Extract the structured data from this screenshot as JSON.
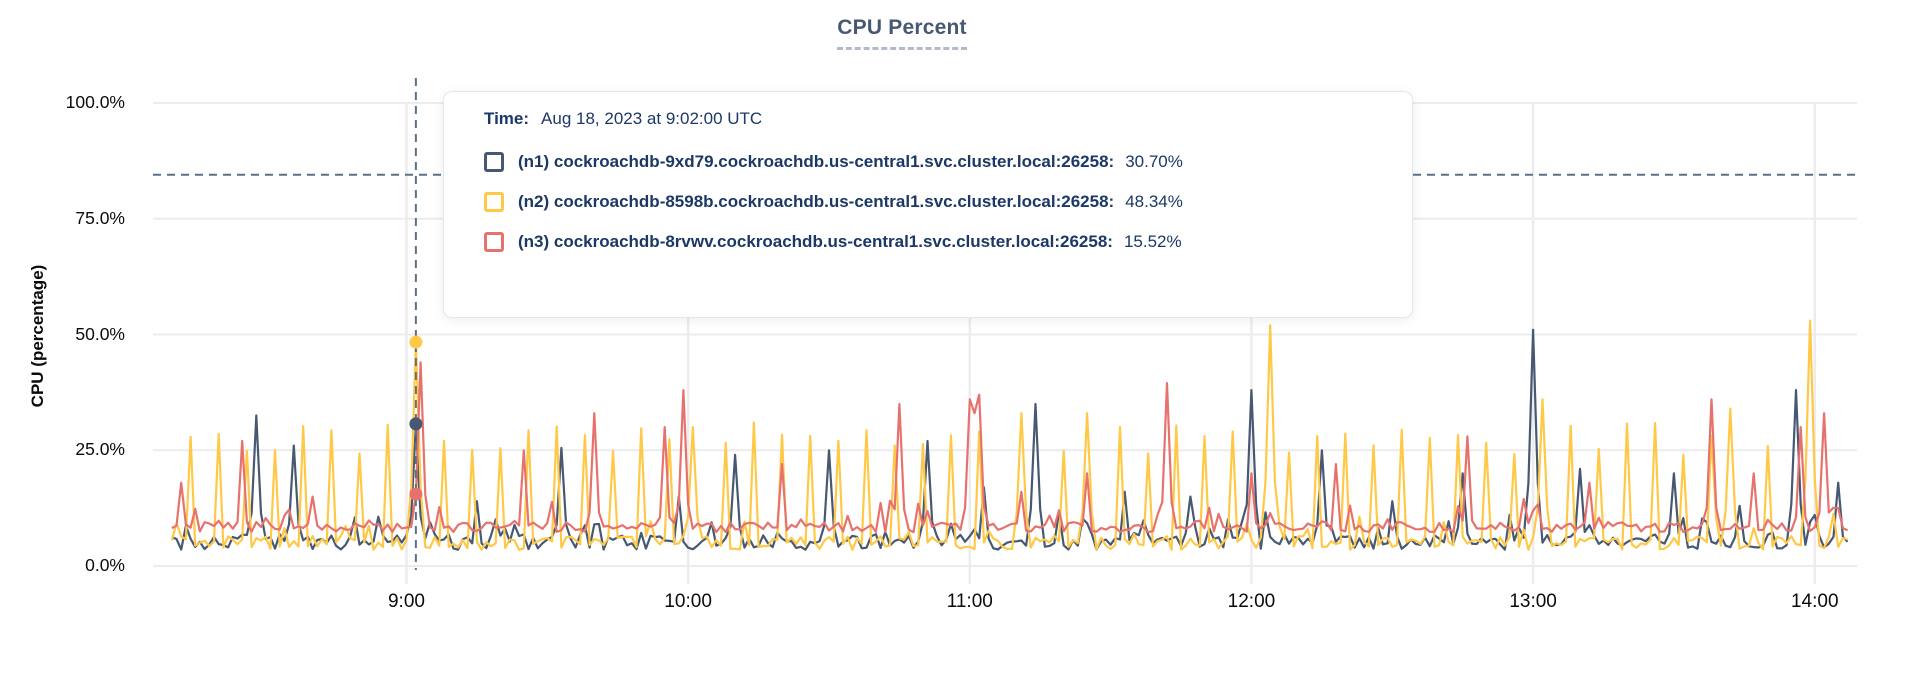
{
  "chart": {
    "title": "CPU Percent",
    "ylabel": "CPU (percentage)"
  },
  "tooltip": {
    "time_label": "Time:",
    "time_value": "Aug 18, 2023 at 9:02:00 UTC",
    "rows": [
      {
        "name": "(n1) cockroachdb-9xd79.cockroachdb.us-central1.svc.cluster.local:26258:",
        "value": "30.70%",
        "color": "#475872"
      },
      {
        "name": "(n2) cockroachdb-8598b.cockroachdb.us-central1.svc.cluster.local:26258:",
        "value": "48.34%",
        "color": "#ffc947"
      },
      {
        "name": "(n3) cockroachdb-8rvwv.cockroachdb.us-central1.svc.cluster.local:26258:",
        "value": "15.52%",
        "color": "#e7726d"
      }
    ]
  },
  "colors": {
    "title": "#475872",
    "grid": "#ececec",
    "crosshair": "#5c7089",
    "tooltip_text": "#1b3866",
    "axis_text": "#0b0b0b"
  },
  "chart_data": {
    "type": "line",
    "title": "CPU Percent",
    "xlabel": "",
    "ylabel": "CPU (percentage)",
    "legend_position": "tooltip-overlay",
    "grid": true,
    "x_axis": {
      "unit": "time (UTC), minutes after 8:00",
      "start_min": 6,
      "end_min": 369,
      "data_start_min": 10,
      "data_end_min": 367,
      "ticks_min": [
        60,
        120,
        180,
        240,
        300,
        360
      ],
      "tick_labels": [
        "9:00",
        "10:00",
        "11:00",
        "12:00",
        "13:00",
        "14:00"
      ]
    },
    "y_axis": {
      "range": [
        0,
        100
      ],
      "ticks": [
        0,
        25,
        50,
        75,
        100
      ],
      "tick_labels": [
        "0.0%",
        "25.0%",
        "50.0%",
        "75.0%",
        "100.0%"
      ]
    },
    "hover": {
      "time_min": 62,
      "time_text": "Aug 18, 2023 at 9:02:00 UTC",
      "cursor_pct": 84.5,
      "values_pct": [
        30.7,
        48.34,
        15.52
      ]
    },
    "series": [
      {
        "name": "(n1) cockroachdb-9xd79.cockroachdb.us-central1.svc.cluster.local:26258",
        "color": "#475872",
        "baseline_pct": 5.2,
        "noise_pct": 3.4,
        "spikes_min_pct": [
          [
            28,
            32.5
          ],
          [
            36,
            26
          ],
          [
            62,
            30.7
          ],
          [
            75,
            14
          ],
          [
            93,
            25.5
          ],
          [
            118,
            15
          ],
          [
            130,
            24
          ],
          [
            150,
            25
          ],
          [
            171,
            27
          ],
          [
            183,
            17
          ],
          [
            194,
            35
          ],
          [
            213,
            16
          ],
          [
            227,
            15
          ],
          [
            240,
            38
          ],
          [
            255,
            25
          ],
          [
            270,
            14
          ],
          [
            285,
            20
          ],
          [
            300,
            51
          ],
          [
            310,
            21
          ],
          [
            330,
            20
          ],
          [
            344,
            13
          ],
          [
            356,
            38
          ],
          [
            365,
            18
          ]
        ]
      },
      {
        "name": "(n2) cockroachdb-8598b.cockroachdb.us-central1.svc.cluster.local:26258",
        "color": "#ffc947",
        "baseline_pct": 5.0,
        "noise_pct": 3.0,
        "regular_spikes": {
          "period_min": 6,
          "offset_min": 14,
          "min_peak_pct": 24,
          "max_peak_pct": 31
        },
        "spikes_min_pct": [
          [
            62,
            48.34
          ],
          [
            121,
            30
          ],
          [
            191,
            33
          ],
          [
            205,
            33
          ],
          [
            244,
            52
          ],
          [
            302,
            36
          ],
          [
            342,
            34
          ],
          [
            359,
            53
          ]
        ]
      },
      {
        "name": "(n3) cockroachdb-8rvwv.cockroachdb.us-central1.svc.cluster.local:26258",
        "color": "#e7726d",
        "baseline_pct": 8.4,
        "noise_pct": 2.2,
        "spikes_min_pct": [
          [
            12,
            18
          ],
          [
            25,
            27
          ],
          [
            40,
            15
          ],
          [
            63,
            44
          ],
          [
            85,
            25
          ],
          [
            100,
            33
          ],
          [
            115,
            30
          ],
          [
            119,
            38
          ],
          [
            140,
            22
          ],
          [
            165,
            35
          ],
          [
            180,
            36
          ],
          [
            181,
            33
          ],
          [
            182,
            37
          ],
          [
            191,
            16
          ],
          [
            205,
            20
          ],
          [
            222,
            39.5
          ],
          [
            240,
            20
          ],
          [
            258,
            22
          ],
          [
            286,
            28
          ],
          [
            312,
            18
          ],
          [
            338,
            36
          ],
          [
            347,
            20
          ],
          [
            357,
            30
          ],
          [
            362,
            33
          ]
        ]
      }
    ]
  }
}
